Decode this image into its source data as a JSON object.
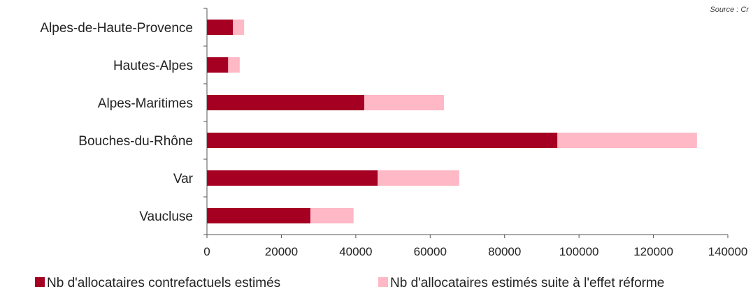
{
  "source_note": "Source : Cr",
  "chart_data": {
    "type": "bar",
    "orientation": "horizontal",
    "stacked": true,
    "categories": [
      "Alpes-de-Haute-Provence",
      "Hautes-Alpes",
      "Alpes-Maritimes",
      "Bouches-du-Rhône",
      "Var",
      "Vaucluse"
    ],
    "series": [
      {
        "name": "Nb d'allocataires contrefactuels estimés",
        "color": "#A50021",
        "values": [
          7000,
          5700,
          42300,
          94200,
          45900,
          27800
        ]
      },
      {
        "name": "Nb d'allocataires estimés suite à l'effet réforme",
        "color": "#FFB8C5",
        "values": [
          3000,
          3100,
          21400,
          37500,
          21900,
          11600
        ]
      }
    ],
    "xlim": [
      0,
      140000
    ],
    "xticks": [
      0,
      20000,
      40000,
      60000,
      80000,
      100000,
      120000,
      140000
    ],
    "grid": false,
    "legend_position": "bottom"
  }
}
